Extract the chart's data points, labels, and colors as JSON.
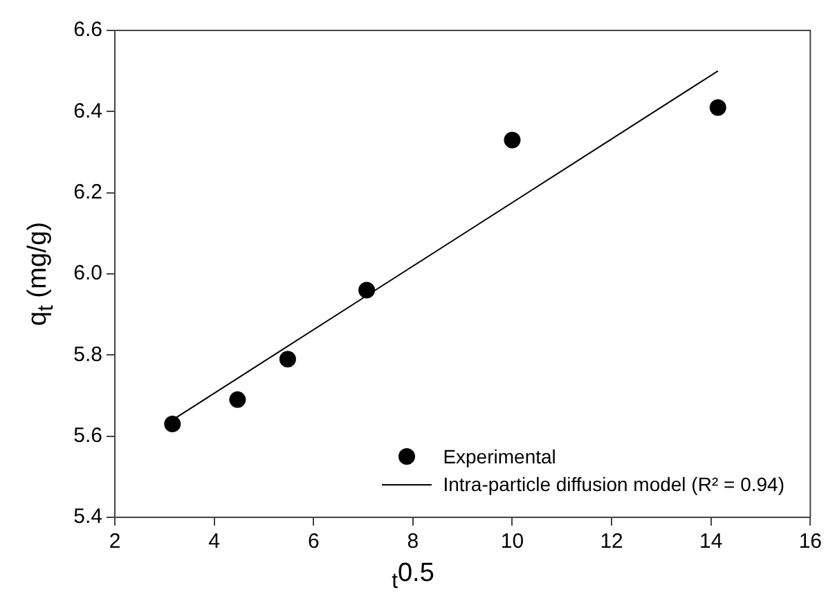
{
  "chart_data": {
    "type": "scatter",
    "xlabel": "$_{t}$0.5",
    "ylabel": "q$_{t}$ (mg/g)",
    "xlim": [
      2,
      16
    ],
    "xticks": [
      2,
      4,
      6,
      8,
      10,
      12,
      14,
      16
    ],
    "ylim": [
      5.4,
      6.6
    ],
    "yticks": [
      5.4,
      5.6,
      5.8,
      {
        "value": 6,
        "label": "6.0"
      },
      6.2,
      6.4,
      6.6
    ],
    "grid": false,
    "legend": "bottom right",
    "marker": "circle",
    "series": [
      {
        "name": "Experimental",
        "type": "scatter",
        "color": "#000000",
        "x": [
          3.16,
          4.47,
          5.48,
          7.07,
          10,
          14.14
        ],
        "values": [
          5.63,
          5.69,
          5.79,
          5.96,
          6.33,
          6.41
        ]
      },
      {
        "name": "Intra-particle diffusion model (R² = 0.94)",
        "type": "line",
        "color": "#000000",
        "x": [
          3.16,
          14.14
        ],
        "values": [
          5.64,
          6.5
        ],
        "marker": "none",
        "line_style": "solid"
      }
    ]
  }
}
